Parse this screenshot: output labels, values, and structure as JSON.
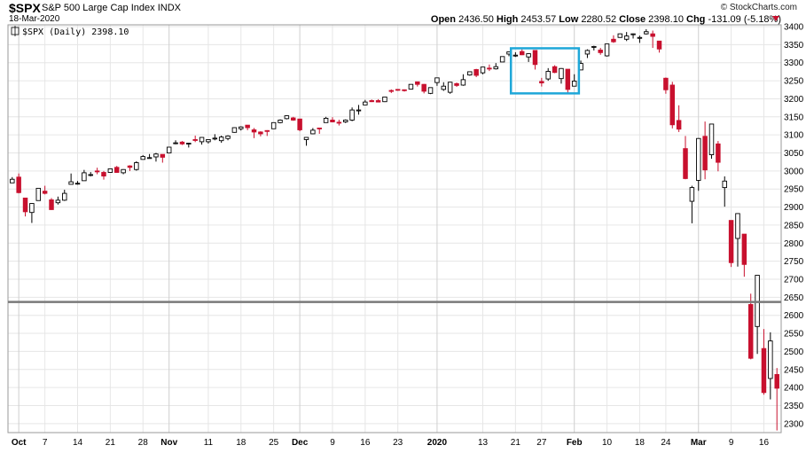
{
  "header": {
    "symbol": "$SPX",
    "name": "S&P 500 Large Cap Index",
    "exchange": "INDX",
    "date": "18-Mar-2020",
    "brand": "© StockCharts.com",
    "open_label": "Open",
    "open": "2436.50",
    "high_label": "High",
    "high": "2453.57",
    "low_label": "Low",
    "low": "2280.52",
    "close_label": "Close",
    "close": "2398.10",
    "chg_label": "Chg",
    "chg": "-131.09 (-5.18%)"
  },
  "legend": "$SPX (Daily) 2398.10",
  "colors": {
    "up": "#000000",
    "down": "#c8102e",
    "box": "#1ea7d8",
    "hline": "#7a7a7a",
    "grid": "#e6e6e6"
  },
  "chart_data": {
    "type": "candlestick",
    "title": "$SPX S&P 500 Large Cap Index INDX",
    "ylim": [
      2275,
      3405
    ],
    "yticks": [
      2300,
      2350,
      2400,
      2450,
      2500,
      2550,
      2600,
      2650,
      2700,
      2750,
      2800,
      2850,
      2900,
      2950,
      3000,
      3050,
      3100,
      3150,
      3200,
      3250,
      3300,
      3350,
      3400
    ],
    "xtick_labels": [
      "Oct",
      "7",
      "14",
      "21",
      "28",
      "Nov",
      "11",
      "18",
      "25",
      "Dec",
      "9",
      "16",
      "23",
      "2020",
      "13",
      "21",
      "27",
      "Feb",
      "10",
      "18",
      "24",
      "Mar",
      "9",
      "16"
    ],
    "month_labels": [
      "Oct",
      "Nov",
      "Dec",
      "2020",
      "Feb",
      "Mar"
    ],
    "horizontal_line": 2637,
    "highlight_box": {
      "x_range": [
        "2020-01-21",
        "2020-02-03"
      ],
      "y_range": [
        3215,
        3340
      ]
    },
    "series": [
      [
        "2019-09-30",
        2967,
        2983,
        2967,
        2977
      ],
      [
        "2019-10-01",
        2983,
        2993,
        2938,
        2940
      ],
      [
        "2019-10-02",
        2925,
        2925,
        2874,
        2887
      ],
      [
        "2019-10-03",
        2885,
        2911,
        2856,
        2910
      ],
      [
        "2019-10-04",
        2918,
        2953,
        2918,
        2952
      ],
      [
        "2019-10-07",
        2944,
        2959,
        2935,
        2938
      ],
      [
        "2019-10-08",
        2920,
        2925,
        2892,
        2893
      ],
      [
        "2019-10-09",
        2912,
        2929,
        2907,
        2919
      ],
      [
        "2019-10-10",
        2919,
        2948,
        2917,
        2938
      ],
      [
        "2019-10-11",
        2963,
        2993,
        2963,
        2970
      ],
      [
        "2019-10-14",
        2965,
        2972,
        2962,
        2966
      ],
      [
        "2019-10-15",
        2973,
        3003,
        2973,
        2995
      ],
      [
        "2019-10-16",
        2989,
        2997,
        2985,
        2990
      ],
      [
        "2019-10-17",
        3000,
        3009,
        2991,
        2998
      ],
      [
        "2019-10-18",
        2996,
        3000,
        2976,
        2986
      ],
      [
        "2019-10-21",
        2996,
        3007,
        2995,
        3006
      ],
      [
        "2019-10-22",
        3010,
        3014,
        2995,
        2996
      ],
      [
        "2019-10-23",
        2995,
        3005,
        2991,
        3004
      ],
      [
        "2019-10-24",
        3014,
        3016,
        3000,
        3010
      ],
      [
        "2019-10-25",
        3004,
        3027,
        3001,
        3023
      ],
      [
        "2019-10-28",
        3032,
        3044,
        3032,
        3040
      ],
      [
        "2019-10-29",
        3036,
        3047,
        3034,
        3037
      ],
      [
        "2019-10-30",
        3039,
        3050,
        3026,
        3047
      ],
      [
        "2019-10-31",
        3046,
        3046,
        3023,
        3038
      ],
      [
        "2019-11-01",
        3050,
        3066,
        3050,
        3066
      ],
      [
        "2019-11-04",
        3078,
        3085,
        3074,
        3078
      ],
      [
        "2019-11-05",
        3080,
        3083,
        3072,
        3075
      ],
      [
        "2019-11-06",
        3075,
        3078,
        3065,
        3077
      ],
      [
        "2019-11-07",
        3087,
        3098,
        3080,
        3085
      ],
      [
        "2019-11-08",
        3081,
        3094,
        3073,
        3093
      ],
      [
        "2019-11-11",
        3081,
        3088,
        3076,
        3087
      ],
      [
        "2019-11-12",
        3090,
        3102,
        3085,
        3091
      ],
      [
        "2019-11-13",
        3084,
        3098,
        3078,
        3094
      ],
      [
        "2019-11-14",
        3090,
        3099,
        3085,
        3097
      ],
      [
        "2019-11-15",
        3107,
        3121,
        3106,
        3120
      ],
      [
        "2019-11-18",
        3117,
        3124,
        3112,
        3122
      ],
      [
        "2019-11-19",
        3127,
        3127,
        3113,
        3120
      ],
      [
        "2019-11-20",
        3114,
        3119,
        3091,
        3108
      ],
      [
        "2019-11-21",
        3108,
        3110,
        3096,
        3103
      ],
      [
        "2019-11-22",
        3112,
        3113,
        3097,
        3110
      ],
      [
        "2019-11-25",
        3117,
        3134,
        3117,
        3134
      ],
      [
        "2019-11-26",
        3134,
        3143,
        3132,
        3141
      ],
      [
        "2019-11-27",
        3145,
        3154,
        3143,
        3153
      ],
      [
        "2019-11-29",
        3147,
        3150,
        3139,
        3141
      ],
      [
        "2019-12-02",
        3144,
        3144,
        3110,
        3114
      ],
      [
        "2019-12-03",
        3087,
        3094,
        3070,
        3093
      ],
      [
        "2019-12-04",
        3103,
        3119,
        3102,
        3113
      ],
      [
        "2019-12-05",
        3119,
        3120,
        3103,
        3117
      ],
      [
        "2019-12-06",
        3134,
        3150,
        3134,
        3146
      ],
      [
        "2019-12-09",
        3141,
        3149,
        3135,
        3136
      ],
      [
        "2019-12-10",
        3135,
        3142,
        3126,
        3133
      ],
      [
        "2019-12-11",
        3136,
        3143,
        3133,
        3141
      ],
      [
        "2019-12-12",
        3141,
        3176,
        3138,
        3169
      ],
      [
        "2019-12-13",
        3167,
        3183,
        3156,
        3169
      ],
      [
        "2019-12-16",
        3183,
        3197,
        3183,
        3191
      ],
      [
        "2019-12-17",
        3195,
        3198,
        3191,
        3192
      ],
      [
        "2019-12-18",
        3195,
        3199,
        3191,
        3191
      ],
      [
        "2019-12-19",
        3192,
        3205,
        3191,
        3205
      ],
      [
        "2019-12-20",
        3223,
        3226,
        3216,
        3221
      ],
      [
        "2019-12-23",
        3226,
        3227,
        3222,
        3224
      ],
      [
        "2019-12-24",
        3225,
        3226,
        3220,
        3223
      ],
      [
        "2019-12-26",
        3227,
        3240,
        3227,
        3240
      ],
      [
        "2019-12-27",
        3247,
        3247,
        3234,
        3240
      ],
      [
        "2019-12-30",
        3240,
        3241,
        3215,
        3221
      ],
      [
        "2019-12-31",
        3215,
        3231,
        3213,
        3231
      ],
      [
        "2020-01-02",
        3245,
        3258,
        3236,
        3258
      ],
      [
        "2020-01-03",
        3226,
        3246,
        3222,
        3235
      ],
      [
        "2020-01-06",
        3218,
        3247,
        3214,
        3246
      ],
      [
        "2020-01-07",
        3242,
        3245,
        3233,
        3237
      ],
      [
        "2020-01-08",
        3238,
        3268,
        3236,
        3253
      ],
      [
        "2020-01-09",
        3266,
        3275,
        3264,
        3275
      ],
      [
        "2020-01-10",
        3281,
        3283,
        3260,
        3265
      ],
      [
        "2020-01-13",
        3272,
        3288,
        3268,
        3288
      ],
      [
        "2020-01-14",
        3285,
        3295,
        3277,
        3283
      ],
      [
        "2020-01-15",
        3283,
        3299,
        3281,
        3289
      ],
      [
        "2020-01-16",
        3302,
        3317,
        3302,
        3317
      ],
      [
        "2020-01-17",
        3324,
        3330,
        3318,
        3330
      ],
      [
        "2020-01-21",
        3321,
        3329,
        3316,
        3321
      ],
      [
        "2020-01-22",
        3331,
        3337,
        3321,
        3322
      ],
      [
        "2020-01-23",
        3316,
        3326,
        3302,
        3325
      ],
      [
        "2020-01-24",
        3334,
        3334,
        3281,
        3295
      ],
      [
        "2020-01-27",
        3248,
        3258,
        3234,
        3244
      ],
      [
        "2020-01-28",
        3255,
        3285,
        3250,
        3276
      ],
      [
        "2020-01-29",
        3289,
        3293,
        3271,
        3273
      ],
      [
        "2020-01-30",
        3256,
        3285,
        3242,
        3284
      ],
      [
        "2020-01-31",
        3282,
        3282,
        3214,
        3226
      ],
      [
        "2020-02-03",
        3235,
        3268,
        3235,
        3249
      ],
      [
        "2020-02-04",
        3280,
        3306,
        3280,
        3298
      ],
      [
        "2020-02-05",
        3324,
        3337,
        3313,
        3334
      ],
      [
        "2020-02-06",
        3344,
        3347,
        3334,
        3345
      ],
      [
        "2020-02-07",
        3335,
        3341,
        3322,
        3328
      ],
      [
        "2020-02-10",
        3319,
        3352,
        3317,
        3352
      ],
      [
        "2020-02-11",
        3365,
        3376,
        3355,
        3358
      ],
      [
        "2020-02-12",
        3370,
        3381,
        3369,
        3380
      ],
      [
        "2020-02-13",
        3365,
        3385,
        3360,
        3374
      ],
      [
        "2020-02-14",
        3378,
        3381,
        3367,
        3380
      ],
      [
        "2020-02-18",
        3369,
        3375,
        3355,
        3370
      ],
      [
        "2020-02-19",
        3380,
        3393,
        3378,
        3386
      ],
      [
        "2020-02-20",
        3380,
        3389,
        3341,
        3373
      ],
      [
        "2020-02-21",
        3360,
        3360,
        3328,
        3338
      ],
      [
        "2020-02-24",
        3257,
        3259,
        3214,
        3225
      ],
      [
        "2020-02-25",
        3238,
        3247,
        3118,
        3128
      ],
      [
        "2020-02-26",
        3140,
        3182,
        3108,
        3116
      ],
      [
        "2020-02-27",
        3062,
        3097,
        2977,
        2979
      ],
      [
        "2020-02-28",
        2916,
        2959,
        2855,
        2954
      ],
      [
        "2020-03-02",
        2974,
        3091,
        2945,
        3090
      ],
      [
        "2020-03-03",
        3096,
        3137,
        2977,
        3003
      ],
      [
        "2020-03-04",
        3045,
        3130,
        3034,
        3130
      ],
      [
        "2020-03-05",
        3075,
        3083,
        2999,
        3024
      ],
      [
        "2020-03-06",
        2954,
        2985,
        2901,
        2972
      ],
      [
        "2020-03-09",
        2863,
        2863,
        2734,
        2746
      ],
      [
        "2020-03-10",
        2813,
        2883,
        2735,
        2882
      ],
      [
        "2020-03-11",
        2825,
        2825,
        2707,
        2741
      ],
      [
        "2020-03-12",
        2630,
        2660,
        2478,
        2481
      ],
      [
        "2020-03-13",
        2569,
        2711,
        2493,
        2711
      ],
      [
        "2020-03-16",
        2508,
        2562,
        2380,
        2386
      ],
      [
        "2020-03-17",
        2425,
        2553,
        2367,
        2529
      ],
      [
        "2020-03-18",
        2436,
        2454,
        2281,
        2398
      ]
    ]
  }
}
